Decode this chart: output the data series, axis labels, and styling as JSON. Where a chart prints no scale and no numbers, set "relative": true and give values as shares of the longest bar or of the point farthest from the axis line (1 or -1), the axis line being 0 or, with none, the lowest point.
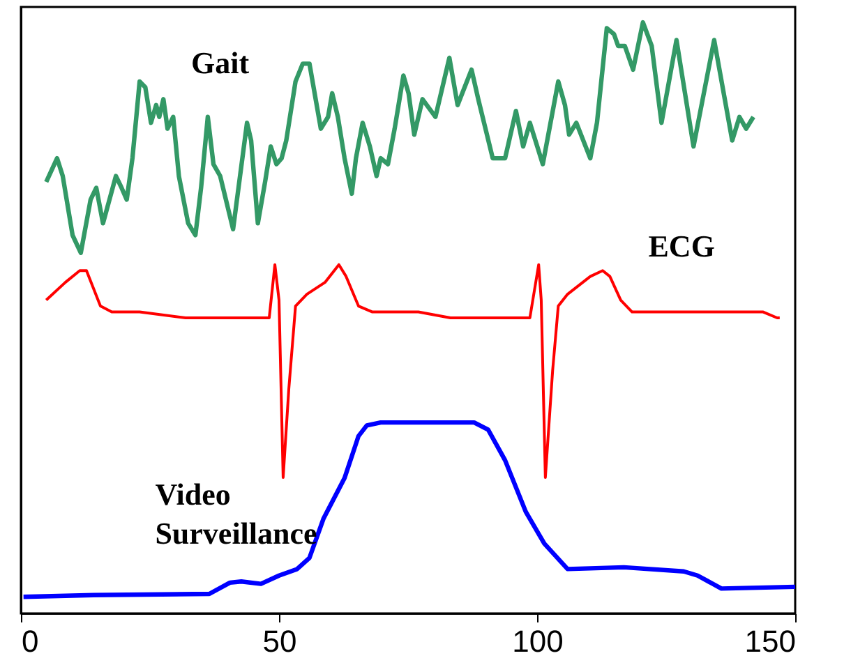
{
  "chart_data": {
    "type": "line",
    "relative": true,
    "xlim": [
      0,
      150
    ],
    "xticks": [
      0,
      50,
      100,
      150
    ],
    "legend": false,
    "series": [
      {
        "name": "Gait",
        "color": "#339966",
        "x": [
          4.9,
          7.0,
          8.1,
          10.0,
          11.6,
          13.5,
          14.6,
          15.9,
          18.4,
          19.5,
          20.5,
          21.6,
          23.0,
          24.1,
          25.2,
          26.2,
          26.8,
          27.6,
          28.4,
          29.5,
          30.6,
          32.4,
          33.8,
          34.9,
          36.2,
          37.3,
          38.6,
          41.1,
          43.8,
          44.6,
          45.9,
          47.3,
          48.4,
          49.5,
          50.5,
          51.4,
          53.2,
          54.6,
          55.9,
          58.1,
          59.5,
          60.3,
          61.4,
          62.7,
          64.1,
          64.9,
          66.2,
          67.6,
          68.9,
          69.7,
          71.1,
          72.4,
          74.1,
          75.1,
          76.2,
          77.8,
          80.3,
          83.0,
          84.6,
          87.3,
          88.6,
          91.4,
          93.8,
          95.9,
          97.3,
          98.6,
          101.1,
          104.1,
          105.4,
          106.2,
          107.6,
          110.3,
          111.6,
          113.5,
          114.9,
          115.7,
          117.0,
          118.6,
          120.5,
          122.2,
          124.1,
          127.0,
          130.3,
          134.3,
          137.8,
          139.2,
          140.5,
          141.9
        ],
        "values": [
          0.73,
          0.77,
          0.74,
          0.64,
          0.61,
          0.7,
          0.72,
          0.66,
          0.74,
          0.72,
          0.7,
          0.77,
          0.9,
          0.89,
          0.83,
          0.86,
          0.84,
          0.87,
          0.82,
          0.84,
          0.74,
          0.66,
          0.64,
          0.72,
          0.84,
          0.76,
          0.74,
          0.65,
          0.83,
          0.8,
          0.66,
          0.73,
          0.79,
          0.76,
          0.77,
          0.8,
          0.9,
          0.93,
          0.93,
          0.82,
          0.84,
          0.88,
          0.84,
          0.77,
          0.71,
          0.77,
          0.83,
          0.79,
          0.74,
          0.77,
          0.76,
          0.82,
          0.91,
          0.88,
          0.81,
          0.87,
          0.84,
          0.94,
          0.86,
          0.92,
          0.87,
          0.77,
          0.77,
          0.85,
          0.79,
          0.83,
          0.76,
          0.9,
          0.86,
          0.81,
          0.83,
          0.77,
          0.83,
          0.99,
          0.98,
          0.96,
          0.96,
          0.92,
          1.0,
          0.96,
          0.83,
          0.97,
          0.79,
          0.97,
          0.8,
          0.84,
          0.82,
          0.84
        ]
      },
      {
        "name": "ECG",
        "color": "#ff0000",
        "x": [
          4.9,
          8.6,
          11.4,
          12.7,
          15.4,
          17.6,
          23.0,
          31.9,
          41.1,
          44.6,
          48.1,
          49.2,
          50.0,
          50.8,
          51.9,
          53.2,
          55.4,
          58.9,
          61.6,
          63.0,
          65.4,
          68.1,
          77.0,
          83.2,
          92.4,
          98.6,
          100.3,
          100.8,
          101.6,
          103.0,
          104.1,
          105.9,
          110.3,
          112.7,
          114.1,
          116.2,
          118.4,
          124.9,
          131.9,
          143.8,
          146.5,
          147.0
        ],
        "values": [
          0.53,
          0.56,
          0.58,
          0.58,
          0.52,
          0.51,
          0.51,
          0.5,
          0.5,
          0.5,
          0.5,
          0.59,
          0.53,
          0.23,
          0.38,
          0.52,
          0.54,
          0.56,
          0.59,
          0.57,
          0.52,
          0.51,
          0.51,
          0.5,
          0.5,
          0.5,
          0.59,
          0.53,
          0.23,
          0.41,
          0.52,
          0.54,
          0.57,
          0.58,
          0.57,
          0.53,
          0.51,
          0.51,
          0.51,
          0.51,
          0.5,
          0.5
        ]
      },
      {
        "name": "Video Surveillance",
        "color": "#0000ff",
        "x": [
          0.5,
          14.1,
          36.5,
          40.5,
          42.7,
          46.5,
          50.0,
          53.5,
          55.9,
          58.6,
          62.7,
          65.4,
          67.0,
          69.7,
          77.0,
          87.8,
          90.5,
          93.8,
          97.8,
          101.4,
          105.9,
          116.8,
          128.4,
          131.1,
          135.7,
          150.0
        ],
        "values": [
          0.028,
          0.031,
          0.033,
          0.052,
          0.054,
          0.05,
          0.064,
          0.075,
          0.094,
          0.16,
          0.229,
          0.3,
          0.318,
          0.323,
          0.323,
          0.323,
          0.311,
          0.259,
          0.172,
          0.118,
          0.075,
          0.078,
          0.071,
          0.064,
          0.042,
          0.045
        ]
      }
    ]
  }
}
